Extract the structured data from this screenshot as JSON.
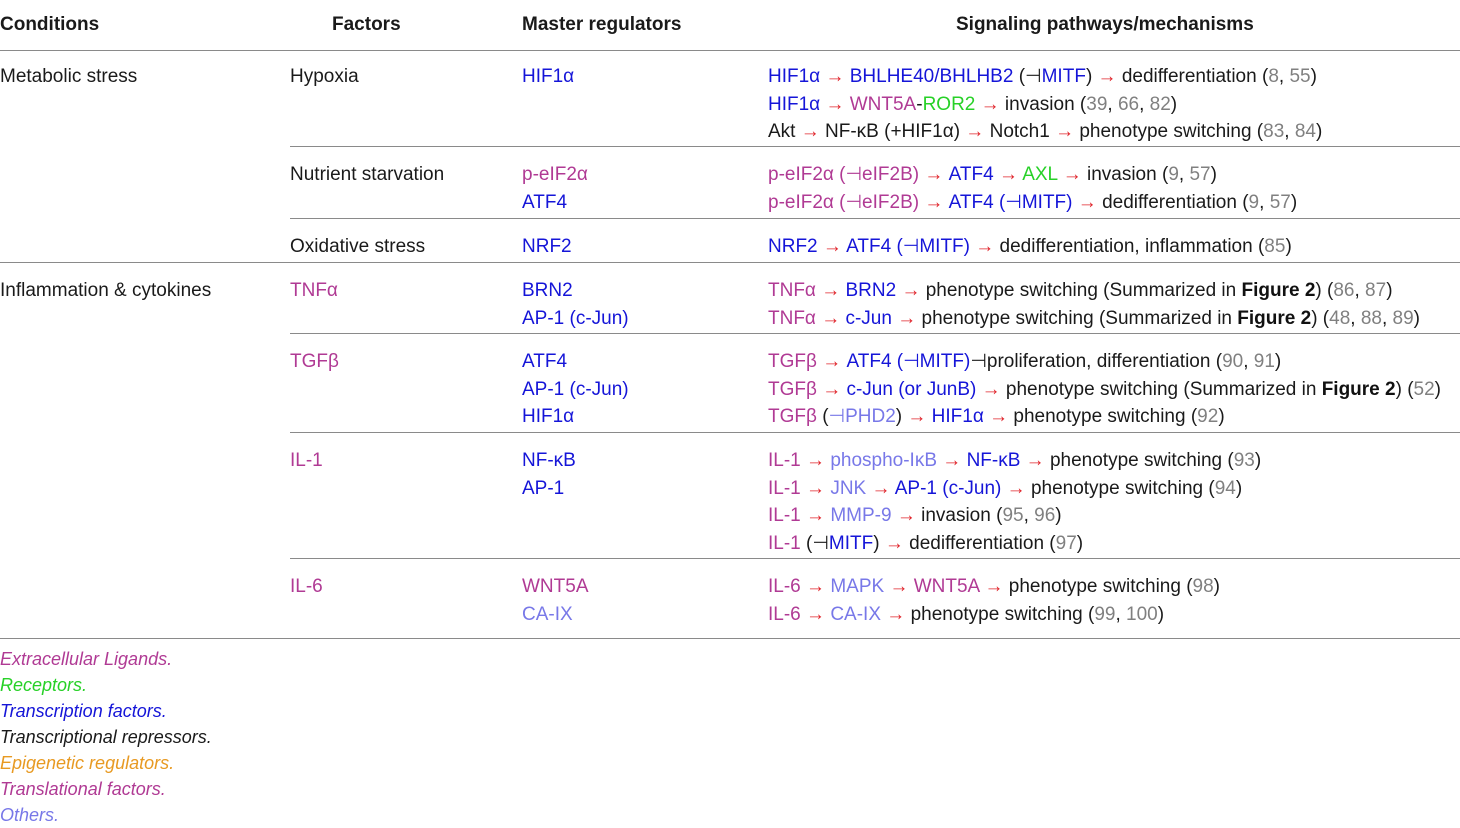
{
  "headers": {
    "conditions": "Conditions",
    "factors": "Factors",
    "master_regulators": "Master regulators",
    "pathways": "Signaling pathways/mechanisms"
  },
  "colors": {
    "extracellular_ligand": "#b03a94",
    "receptor": "#27d127",
    "transcription_factor": "#1515d8",
    "transcriptional_repressor": "#1a1a1a",
    "epigenetic_regulator": "#e89a22",
    "translational_factor": "#b03a94",
    "other": "#7878e8",
    "reference": "#808080",
    "arrow": "#e0242b"
  },
  "conditions": {
    "metabolic_stress": "Metabolic stress",
    "inflammation": "Inflammation & cytokines"
  },
  "factors": {
    "hypoxia": "Hypoxia",
    "nutrient_starvation": "Nutrient starvation",
    "oxidative_stress": "Oxidative stress",
    "tnfa": "TNFα",
    "tgfb": "TGFβ",
    "il1": "IL-1",
    "il6": "IL-6"
  },
  "regulators": {
    "hif1a": "HIF1α",
    "peif2a": "p-eIF2α",
    "atf4": "ATF4",
    "nrf2": "NRF2",
    "brn2": "BRN2",
    "ap1_cjun": "AP-1 (c-Jun)",
    "tgfb_atf4": "ATF4",
    "tgfb_ap1": "AP-1 (c-Jun)",
    "tgfb_hif1a": "HIF1α",
    "nfkb": "NF-κB",
    "ap1": "AP-1",
    "wnt5a": "WNT5A",
    "caix": "CA-IX"
  },
  "pathways": {
    "hyp1": {
      "a": "HIF1α",
      "ar1": " → ",
      "b": "BHLHE40/BHLHB2",
      "c": " (⊣",
      "d": "MITF",
      "e": ")",
      "ar2": " → ",
      "f": "dedifferentiation (",
      "r1": "8",
      "s1": ", ",
      "r2": "55",
      "g": ")"
    },
    "hyp2": {
      "a": "HIF1α",
      "ar1": " → ",
      "b": "WNT5A",
      "c": "-",
      "d": "ROR2",
      "ar2": " → ",
      "e": "invasion (",
      "r1": "39",
      "s1": ", ",
      "r2": "66",
      "s2": ", ",
      "r3": "82",
      "f": ")"
    },
    "hyp3": {
      "a": "Akt",
      "ar1": " → ",
      "b": "NF-κB (+HIF1α)",
      "ar2": " → ",
      "c": "Notch1",
      "ar3": " → ",
      "d": "phenotype switching (",
      "r1": "83",
      "s1": ", ",
      "r2": "84",
      "e": ")"
    },
    "nut1": {
      "a": "p-eIF2α (⊣eIF2B)",
      "ar1": " → ",
      "b": "ATF4",
      "ar2": " → ",
      "c": "AXL",
      "ar3": " → ",
      "d": "invasion (",
      "r1": "9",
      "s1": ", ",
      "r2": "57",
      "e": ")"
    },
    "nut2": {
      "a": "p-eIF2α (⊣eIF2B)",
      "ar1": " → ",
      "b": "ATF4 (⊣",
      "c": "MITF",
      "d": ")",
      "ar2": " → ",
      "e": "dedifferentiation (",
      "r1": "9",
      "s1": ", ",
      "r2": "57",
      "f": ")"
    },
    "ox1": {
      "a": "NRF2",
      "ar1": " → ",
      "b": "ATF4 (⊣MITF)",
      "ar2": " → ",
      "c": "dedifferentiation, inflammation (",
      "r1": "85",
      "d": ")"
    },
    "tnf1": {
      "a": "TNFα",
      "ar1": " → ",
      "b": "BRN2",
      "ar2": " → ",
      "c": "phenotype switching (Summarized in ",
      "fig": "Figure 2",
      "d": ") (",
      "r1": "86",
      "s1": ", ",
      "r2": "87",
      "e": ")"
    },
    "tnf2": {
      "a": "TNFα",
      "ar1": " → ",
      "b": "c-Jun",
      "ar2": " → ",
      "c": "phenotype switching (Summarized in ",
      "fig": "Figure 2",
      "d": ") (",
      "r1": "48",
      "s1": ", ",
      "r2": "88",
      "s2": ", ",
      "r3": "89",
      "e": ")"
    },
    "tgf1": {
      "a": "TGFβ",
      "ar1": " → ",
      "b": "ATF4 (⊣MITF)",
      "c": "⊣proliferation, differentiation (",
      "r1": "90",
      "s1": ", ",
      "r2": "91",
      "d": ")"
    },
    "tgf2": {
      "a": "TGFβ",
      "ar1": " → ",
      "b": "c-Jun (or JunB)",
      "ar2": " → ",
      "c": "phenotype switching (Summarized in ",
      "fig": "Figure 2",
      "d": ") (",
      "r1": "52",
      "e": ")"
    },
    "tgf3": {
      "a": "TGFβ",
      "b": " (",
      "c": "⊣PHD2",
      "d": ")",
      "ar1": " → ",
      "e": "HIF1α",
      "ar2": " → ",
      "f": "phenotype switching (",
      "r1": "92",
      "g": ")"
    },
    "il1a": {
      "a": "IL-1",
      "ar1": " → ",
      "b": "phospho-IκB",
      "ar2": " → ",
      "c": "NF-κB",
      "ar3": " → ",
      "d": "phenotype switching (",
      "r1": "93",
      "e": ")"
    },
    "il1b": {
      "a": "IL-1",
      "ar1": " → ",
      "b": "JNK",
      "ar2": " → ",
      "c": "AP-1 (c-Jun)",
      "ar3": " → ",
      "d": "phenotype switching (",
      "r1": "94",
      "e": ")"
    },
    "il1c": {
      "a": "IL-1",
      "ar1": " → ",
      "b": "MMP-9",
      "ar2": " → ",
      "c": "invasion (",
      "r1": "95",
      "s1": ", ",
      "r2": "96",
      "d": ")"
    },
    "il1d": {
      "a": "IL-1",
      "b": " (⊣",
      "c": "MITF",
      "d": ")",
      "ar1": " → ",
      "e": "dedifferentiation (",
      "r1": "97",
      "f": ")"
    },
    "il6a": {
      "a": "IL-6",
      "ar1": " → ",
      "b": "MAPK",
      "ar2": " → ",
      "c": "WNT5A",
      "ar3": " → ",
      "d": "phenotype switching (",
      "r1": "98",
      "e": ")"
    },
    "il6b": {
      "a": "IL-6",
      "ar1": " → ",
      "b": "CA-IX",
      "ar2": " → ",
      "c": "phenotype switching (",
      "r1": "99",
      "s1": ", ",
      "r2": "100",
      "d": ")"
    }
  },
  "legend": {
    "ligands": "Extracellular Ligands.",
    "receptors": "Receptors.",
    "tf": "Transcription factors.",
    "repressors": "Transcriptional repressors.",
    "epigenetic": "Epigenetic regulators.",
    "translational": "Translational factors.",
    "others": "Others."
  }
}
